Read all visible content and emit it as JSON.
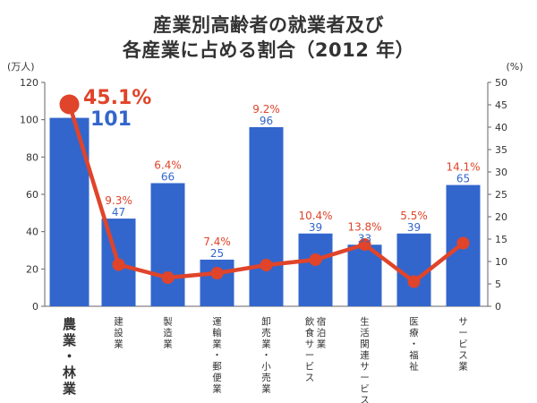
{
  "title_line1": "産業別高齢者の就業者及び",
  "title_line2": "各産業に占める割合（2012 年）",
  "chart_data": {
    "type": "bar",
    "left_unit": "(万人)",
    "right_unit": "(%)",
    "left_ylim": [
      0,
      120
    ],
    "left_ticks": [
      "0",
      "20",
      "40",
      "60",
      "80",
      "100",
      "120"
    ],
    "right_ylim": [
      0,
      50
    ],
    "right_ticks": [
      "0",
      "5",
      "10",
      "15",
      "20",
      "25",
      "30",
      "35",
      "40",
      "45",
      "50"
    ],
    "categories": [
      "農業・林業",
      "建設業",
      "製造業",
      "運輸業・郵便業",
      "卸売業・小売業",
      "宿泊業 飲食サービス",
      "生活関連サービス",
      "医療・福祉",
      "サービス業"
    ],
    "category_lines": [
      [
        "農業・林業"
      ],
      [
        "建設業"
      ],
      [
        "製造業"
      ],
      [
        "運輸業・郵便業"
      ],
      [
        "卸売業・小売業"
      ],
      [
        "宿泊業",
        "飲食サービス"
      ],
      [
        "生活関連サービス"
      ],
      [
        "医療・福祉"
      ],
      [
        "サービス業"
      ]
    ],
    "bar_values": [
      101,
      47,
      66,
      25,
      96,
      39,
      33,
      39,
      65
    ],
    "bar_labels": [
      "101",
      "47",
      "66",
      "25",
      "96",
      "39",
      "33",
      "39",
      "65"
    ],
    "line_values": [
      45.1,
      9.3,
      6.4,
      7.4,
      9.2,
      10.4,
      13.8,
      5.5,
      14.1
    ],
    "line_labels": [
      "45.1%",
      "9.3%",
      "6.4%",
      "7.4%",
      "9.2%",
      "10.4%",
      "13.8%",
      "5.5%",
      "14.1%"
    ],
    "highlight_index": 0,
    "grid": false,
    "bar_color": "#3366cc",
    "line_color": "#e0442a",
    "axis_text_color": "#333333"
  }
}
